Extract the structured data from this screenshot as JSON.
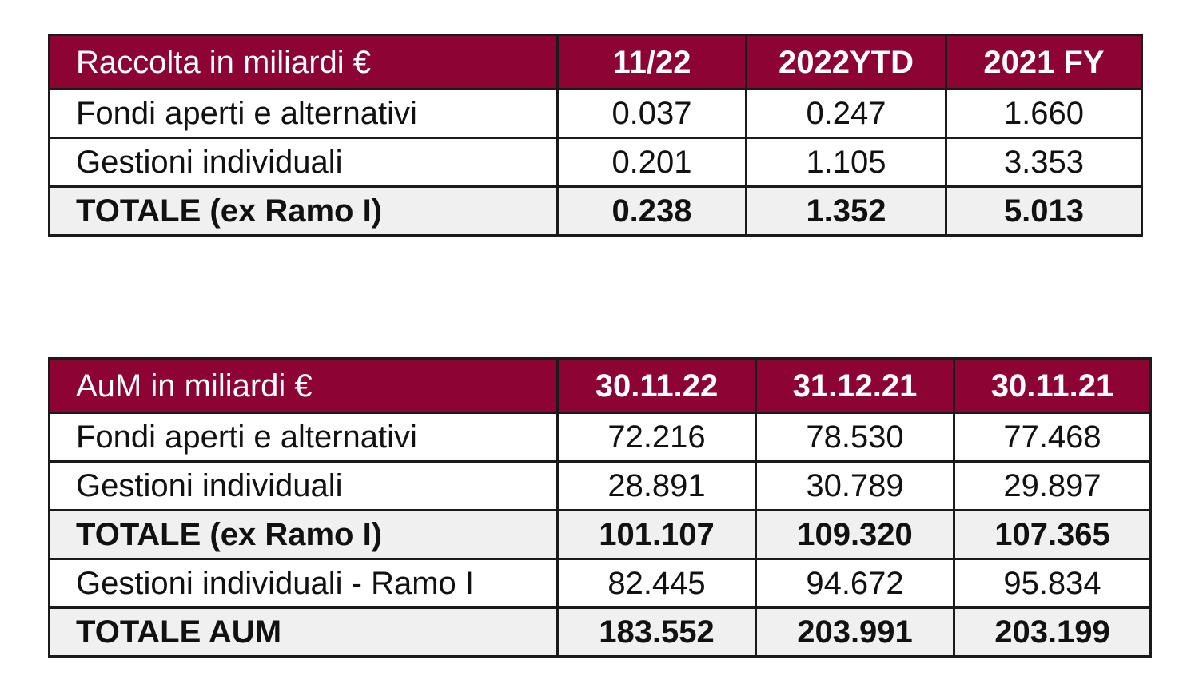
{
  "raccolta": {
    "headers": [
      "Raccolta in miliardi €",
      "11/22",
      "2022YTD",
      "2021 FY"
    ],
    "rows": [
      {
        "label": "Fondi aperti e alternativi",
        "values": [
          "0.037",
          "0.247",
          "1.660"
        ]
      },
      {
        "label": "Gestioni individuali",
        "values": [
          "0.201",
          "1.105",
          "3.353"
        ]
      },
      {
        "label": "TOTALE (ex Ramo I)",
        "values": [
          "0.238",
          "1.352",
          "5.013"
        ]
      }
    ]
  },
  "aum": {
    "headers": [
      "AuM in miliardi €",
      "30.11.22",
      "31.12.21",
      "30.11.21"
    ],
    "rows": [
      {
        "label": "Fondi aperti e alternativi",
        "values": [
          "72.216",
          "78.530",
          "77.468"
        ]
      },
      {
        "label": "Gestioni individuali",
        "values": [
          "28.891",
          "30.789",
          "29.897"
        ]
      },
      {
        "label": "TOTALE (ex Ramo I)",
        "values": [
          "101.107",
          "109.320",
          "107.365"
        ]
      },
      {
        "label": "Gestioni individuali - Ramo I",
        "values": [
          "82.445",
          "94.672",
          "95.834"
        ]
      },
      {
        "label": "TOTALE AUM",
        "values": [
          "183.552",
          "203.991",
          "203.199"
        ]
      }
    ]
  },
  "colors": {
    "header_bg": "#8d0434",
    "header_text": "#ffffff",
    "total_bg": "#f0f0f0"
  }
}
